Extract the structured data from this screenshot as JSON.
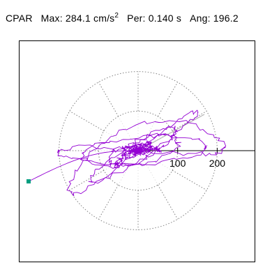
{
  "header": {
    "station": "CPAR",
    "max_label": "Max:",
    "max_value": "284.1 cm/s",
    "max_unit_exp": "2",
    "per_label": "Per:",
    "per_value": "0.140 s",
    "ang_label": "Ang:",
    "ang_value": "196.2"
  },
  "chart_data": {
    "type": "polar-particle-motion",
    "title": "",
    "grid": "dotted polar rings and 30-degree spokes",
    "rings": [
      100,
      200
    ],
    "r_max": 300,
    "tick_labels": [
      "100",
      "200"
    ],
    "max_amplitude": 284.1,
    "max_angle_deg": 196.2,
    "colors": {
      "trace": "#9400d3",
      "grid": "#808080",
      "marker": "#009e80",
      "axis": "#000000"
    }
  }
}
